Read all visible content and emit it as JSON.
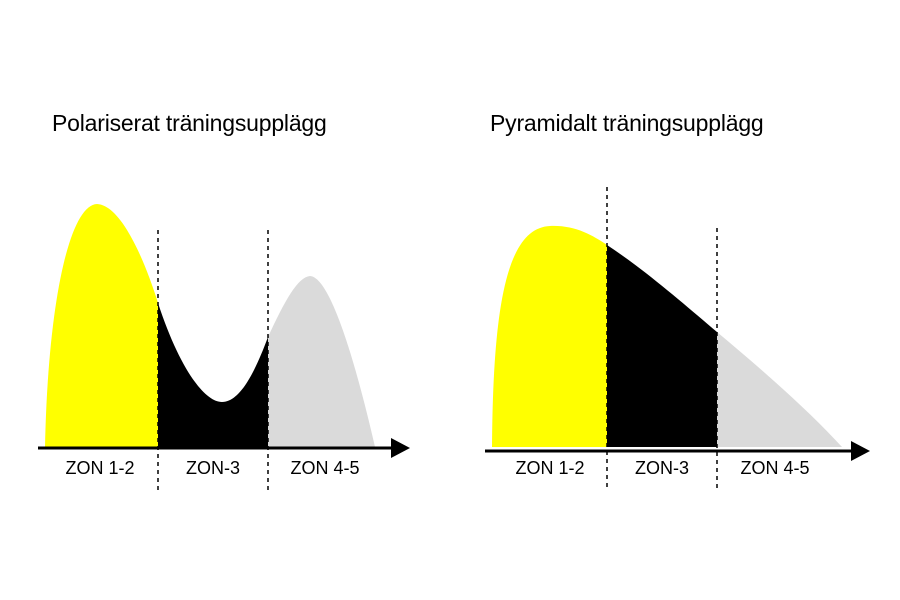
{
  "colors": {
    "zone_low": "#ffff00",
    "zone_mid": "#000000",
    "zone_high": "#dadada",
    "axis": "#000000"
  },
  "panels": [
    {
      "title": "Polariserat träningsupplägg",
      "zones": [
        "ZON 1-2",
        "ZON-3",
        "ZON 4-5"
      ]
    },
    {
      "title": "Pyramidalt träningsupplägg",
      "zones": [
        "ZON 1-2",
        "ZON-3",
        "ZON 4-5"
      ]
    }
  ]
}
